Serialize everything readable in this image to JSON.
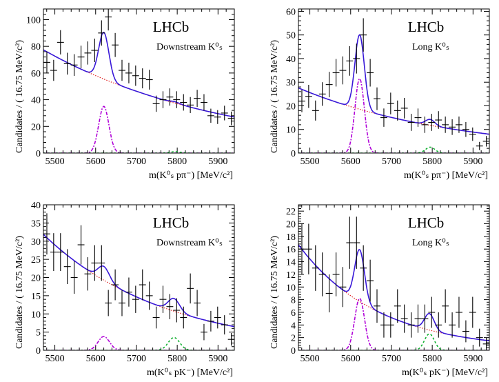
{
  "chart_data": [
    {
      "type": "scatter",
      "id": "dd-pi",
      "x_label": "m(K⁰ₛ pπ⁻) [MeV/c²]",
      "y_label": "Candidates / ( 16.75 MeV/c²)",
      "lhcb_label": "LHCb",
      "sample_label": "Downstream K⁰ₛ",
      "xlim": [
        5472,
        5940
      ],
      "ylim": [
        0,
        108
      ],
      "x_ticks": [
        5500,
        5600,
        5700,
        5800,
        5900
      ],
      "y_ticks": [
        0,
        20,
        40,
        60,
        80,
        100
      ],
      "tick_labels_x": [
        "5500",
        "5600",
        "5700",
        "5800",
        "5900"
      ],
      "tick_labels_y": [
        "0",
        "20",
        "40",
        "60",
        "80",
        "100"
      ],
      "bin_width": 16.75,
      "points_x": [
        5480.4,
        5497.1,
        5513.9,
        5530.6,
        5547.4,
        5564.2,
        5580.9,
        5597.6,
        5614.4,
        5631.1,
        5647.9,
        5664.6,
        5681.4,
        5698.1,
        5714.9,
        5731.6,
        5748.4,
        5765.1,
        5781.9,
        5798.6,
        5815.4,
        5832.1,
        5848.9,
        5865.6,
        5882.4,
        5899.1,
        5915.9,
        5932.6
      ],
      "points_y": [
        68,
        62,
        83,
        67,
        66,
        72,
        75,
        77,
        90,
        102,
        81,
        62,
        60,
        58,
        56,
        55,
        37,
        40,
        42,
        40,
        38,
        36,
        41,
        38,
        28,
        27,
        30,
        26
      ],
      "background": {
        "model": "exponential",
        "at_5480": 76,
        "at_5940": 27
      },
      "signal_lambda_b": {
        "mean": 5620,
        "sigma": 12.5,
        "amplitude": 35
      },
      "signal_xi_b": {
        "mean": 5795,
        "sigma": 12.5,
        "amplitude": 1
      },
      "curves": [
        "total fit",
        "combinatorial background",
        "Λ⁰_b signal",
        "Ξ⁰_b signal"
      ]
    },
    {
      "type": "scatter",
      "id": "ll-pi",
      "x_label": "m(K⁰ₛ pπ⁻) [MeV/c²]",
      "y_label": "Candidates / ( 16.75 MeV/c²)",
      "lhcb_label": "LHCb",
      "sample_label": "Long K⁰ₛ",
      "xlim": [
        5472,
        5940
      ],
      "ylim": [
        0,
        61
      ],
      "x_ticks": [
        5500,
        5600,
        5700,
        5800,
        5900
      ],
      "y_ticks": [
        0,
        10,
        20,
        30,
        40,
        50,
        60
      ],
      "tick_labels_x": [
        "5500",
        "5600",
        "5700",
        "5800",
        "5900"
      ],
      "tick_labels_y": [
        "0",
        "10",
        "20",
        "30",
        "40",
        "50",
        "60"
      ],
      "bin_width": 16.75,
      "points_x": [
        5480.4,
        5497.1,
        5513.9,
        5530.6,
        5547.4,
        5564.2,
        5580.9,
        5597.6,
        5614.4,
        5631.1,
        5647.9,
        5664.6,
        5681.4,
        5698.1,
        5714.9,
        5731.6,
        5748.4,
        5765.1,
        5781.9,
        5798.6,
        5815.4,
        5832.1,
        5848.9,
        5865.6,
        5882.4,
        5899.1,
        5915.9,
        5932.6
      ],
      "points_y": [
        22,
        24,
        18,
        25,
        29,
        34,
        35,
        39,
        40,
        50,
        34,
        23,
        15,
        21,
        18,
        19,
        13,
        15,
        12,
        13,
        14,
        12,
        11,
        12,
        10,
        8,
        3,
        5
      ],
      "background": {
        "model": "exponential",
        "at_5480": 27,
        "at_5940": 8
      },
      "signal_lambda_b": {
        "mean": 5622,
        "sigma": 11.5,
        "amplitude": 31.5
      },
      "signal_xi_b": {
        "mean": 5795,
        "sigma": 11.5,
        "amplitude": 2.5
      },
      "curves": [
        "total fit",
        "combinatorial background",
        "Λ⁰_b signal",
        "Ξ⁰_b signal"
      ]
    },
    {
      "type": "scatter",
      "id": "dd-k",
      "x_label": "m(K⁰ₛ pK⁻) [MeV/c²]",
      "y_label": "Candidates / ( 16.75 MeV/c²)",
      "lhcb_label": "LHCb",
      "sample_label": "Downstream K⁰ₛ",
      "xlim": [
        5472,
        5940
      ],
      "ylim": [
        0,
        40
      ],
      "x_ticks": [
        5500,
        5600,
        5700,
        5800,
        5900
      ],
      "y_ticks": [
        0,
        5,
        10,
        15,
        20,
        25,
        30,
        35,
        40
      ],
      "tick_labels_x": [
        "5500",
        "5600",
        "5700",
        "5800",
        "5900"
      ],
      "tick_labels_y": [
        "0",
        "5",
        "10",
        "15",
        "20",
        "25",
        "30",
        "35",
        "40"
      ],
      "bin_width": 16.75,
      "points_x": [
        5480.4,
        5497.1,
        5513.9,
        5530.6,
        5547.4,
        5564.2,
        5580.9,
        5597.6,
        5614.4,
        5631.1,
        5647.9,
        5664.6,
        5681.4,
        5698.1,
        5714.9,
        5731.6,
        5748.4,
        5765.1,
        5781.9,
        5798.6,
        5815.4,
        5832.1,
        5848.9,
        5865.6,
        5882.4,
        5899.1,
        5915.9,
        5932.6
      ],
      "points_y": [
        32,
        27,
        27,
        23,
        20,
        29,
        21,
        24,
        24,
        13,
        18,
        13,
        16,
        14,
        18,
        15,
        9,
        14,
        12,
        11,
        9,
        17,
        13,
        5,
        8,
        9,
        7,
        3
      ],
      "background": {
        "model": "exponential",
        "at_5480": 31,
        "at_5940": 6.5
      },
      "signal_lambda_b": {
        "mean": 5620,
        "sigma": 14,
        "amplitude": 3.8
      },
      "signal_xi_b": {
        "mean": 5792,
        "sigma": 14,
        "amplitude": 3.5
      },
      "curves": [
        "total fit",
        "combinatorial background",
        "Λ⁰_b signal",
        "Ξ⁰_b signal"
      ]
    },
    {
      "type": "scatter",
      "id": "ll-k",
      "x_label": "m(K⁰ₛ pK⁻) [MeV/c²]",
      "y_label": "Candidates / ( 16.75 MeV/c²)",
      "lhcb_label": "LHCb",
      "sample_label": "Long K⁰ₛ",
      "xlim": [
        5472,
        5940
      ],
      "ylim": [
        0,
        23
      ],
      "x_ticks": [
        5500,
        5600,
        5700,
        5800,
        5900
      ],
      "y_ticks": [
        0,
        2,
        4,
        6,
        8,
        10,
        12,
        14,
        16,
        18,
        20,
        22
      ],
      "tick_labels_x": [
        "5500",
        "5600",
        "5700",
        "5800",
        "5900"
      ],
      "tick_labels_y": [
        "0",
        "2",
        "4",
        "6",
        "8",
        "10",
        "12",
        "14",
        "16",
        "18",
        "20",
        "22"
      ],
      "bin_width": 16.75,
      "points_x": [
        5480.4,
        5497.1,
        5513.9,
        5530.6,
        5547.4,
        5564.2,
        5580.9,
        5597.6,
        5614.4,
        5631.1,
        5647.9,
        5664.6,
        5681.4,
        5698.1,
        5714.9,
        5731.6,
        5748.4,
        5765.1,
        5781.9,
        5798.6,
        5815.4,
        5832.1,
        5848.9,
        5865.6,
        5882.4,
        5899.1,
        5915.9,
        5932.6
      ],
      "points_y": [
        16,
        16,
        13,
        12,
        9,
        12,
        10,
        17,
        17,
        13,
        11,
        7,
        4,
        4,
        7,
        5,
        4,
        5,
        5,
        6,
        4,
        7,
        4,
        6,
        3,
        6,
        2,
        1
      ],
      "background": {
        "model": "exponential",
        "at_5480": 16,
        "at_5940": 1.5
      },
      "signal_lambda_b": {
        "mean": 5622,
        "sigma": 12,
        "amplitude": 8.2
      },
      "signal_xi_b": {
        "mean": 5793,
        "sigma": 12,
        "amplitude": 2.6
      },
      "curves": [
        "total fit",
        "combinatorial background",
        "Λ⁰_b signal",
        "Ξ⁰_b signal"
      ]
    }
  ]
}
